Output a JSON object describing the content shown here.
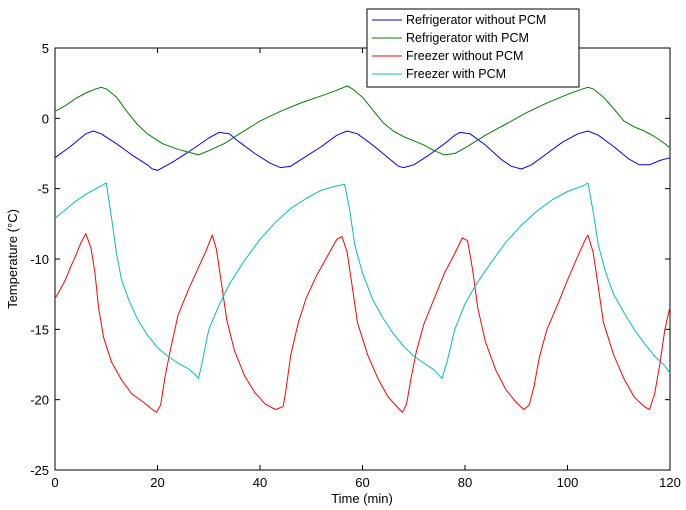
{
  "chart_data": {
    "type": "line",
    "xlabel": "Time (min)",
    "ylabel": "Temperature (°C)",
    "xlim": [
      0,
      120
    ],
    "ylim": [
      -25,
      5
    ],
    "xticks": [
      0,
      20,
      40,
      60,
      80,
      100,
      120
    ],
    "yticks": [
      -25,
      -20,
      -15,
      -10,
      -5,
      0,
      5
    ],
    "grid": false,
    "legend_position": "top-right",
    "series": [
      {
        "name": "Refrigerator without PCM",
        "color": "#0000ff",
        "points": [
          [
            0,
            -2.8
          ],
          [
            3,
            -2.0
          ],
          [
            6,
            -1.1
          ],
          [
            7.5,
            -0.9
          ],
          [
            9,
            -1.1
          ],
          [
            12,
            -1.8
          ],
          [
            15,
            -2.6
          ],
          [
            18,
            -3.3
          ],
          [
            19,
            -3.6
          ],
          [
            20,
            -3.7
          ],
          [
            23,
            -3.1
          ],
          [
            26,
            -2.4
          ],
          [
            30,
            -1.4
          ],
          [
            32,
            -1.0
          ],
          [
            34,
            -1.1
          ],
          [
            36,
            -1.7
          ],
          [
            39,
            -2.5
          ],
          [
            42,
            -3.2
          ],
          [
            44,
            -3.5
          ],
          [
            46,
            -3.4
          ],
          [
            49,
            -2.7
          ],
          [
            52,
            -2.0
          ],
          [
            55,
            -1.2
          ],
          [
            57,
            -0.9
          ],
          [
            59,
            -1.1
          ],
          [
            62,
            -1.9
          ],
          [
            65,
            -2.8
          ],
          [
            67,
            -3.4
          ],
          [
            68,
            -3.5
          ],
          [
            70,
            -3.3
          ],
          [
            73,
            -2.6
          ],
          [
            76,
            -1.8
          ],
          [
            78,
            -1.2
          ],
          [
            79,
            -1.0
          ],
          [
            81,
            -1.1
          ],
          [
            84,
            -1.9
          ],
          [
            87,
            -2.9
          ],
          [
            89,
            -3.4
          ],
          [
            91,
            -3.6
          ],
          [
            93,
            -3.3
          ],
          [
            96,
            -2.5
          ],
          [
            99,
            -1.7
          ],
          [
            102,
            -1.1
          ],
          [
            104,
            -0.9
          ],
          [
            106,
            -1.2
          ],
          [
            109,
            -2.0
          ],
          [
            112,
            -2.9
          ],
          [
            114,
            -3.3
          ],
          [
            116,
            -3.3
          ],
          [
            118,
            -3.0
          ],
          [
            120,
            -2.8
          ]
        ]
      },
      {
        "name": "Refrigerator with PCM",
        "color": "#008000",
        "points": [
          [
            0,
            0.5
          ],
          [
            2,
            0.9
          ],
          [
            4,
            1.4
          ],
          [
            6,
            1.8
          ],
          [
            8,
            2.1
          ],
          [
            9,
            2.2
          ],
          [
            10,
            2.1
          ],
          [
            12,
            1.5
          ],
          [
            14,
            0.5
          ],
          [
            16,
            -0.4
          ],
          [
            18,
            -1.1
          ],
          [
            21,
            -1.8
          ],
          [
            24,
            -2.2
          ],
          [
            26,
            -2.4
          ],
          [
            28,
            -2.6
          ],
          [
            30,
            -2.3
          ],
          [
            33,
            -1.8
          ],
          [
            36,
            -1.1
          ],
          [
            40,
            -0.2
          ],
          [
            44,
            0.5
          ],
          [
            48,
            1.1
          ],
          [
            52,
            1.6
          ],
          [
            55,
            2.0
          ],
          [
            57,
            2.3
          ],
          [
            58,
            2.1
          ],
          [
            60,
            1.5
          ],
          [
            62,
            0.6
          ],
          [
            64,
            -0.3
          ],
          [
            66,
            -0.9
          ],
          [
            68,
            -1.3
          ],
          [
            70,
            -1.6
          ],
          [
            72,
            -1.9
          ],
          [
            74,
            -2.3
          ],
          [
            76,
            -2.6
          ],
          [
            78,
            -2.5
          ],
          [
            80,
            -2.1
          ],
          [
            84,
            -1.2
          ],
          [
            88,
            -0.4
          ],
          [
            92,
            0.4
          ],
          [
            96,
            1.1
          ],
          [
            100,
            1.7
          ],
          [
            103,
            2.1
          ],
          [
            104,
            2.2
          ],
          [
            105,
            2.1
          ],
          [
            107,
            1.5
          ],
          [
            109,
            0.7
          ],
          [
            111,
            -0.2
          ],
          [
            113,
            -0.6
          ],
          [
            115,
            -0.9
          ],
          [
            117,
            -1.3
          ],
          [
            119,
            -1.8
          ],
          [
            120,
            -2.1
          ]
        ]
      },
      {
        "name": "Freezer without PCM",
        "color": "#ff0000",
        "points": [
          [
            0,
            -12.8
          ],
          [
            1,
            -12.2
          ],
          [
            2,
            -11.5
          ],
          [
            3,
            -10.6
          ],
          [
            4,
            -9.8
          ],
          [
            5,
            -8.9
          ],
          [
            6,
            -8.2
          ],
          [
            7,
            -9.2
          ],
          [
            7.8,
            -11.0
          ],
          [
            8.5,
            -13.5
          ],
          [
            9.5,
            -15.6
          ],
          [
            11,
            -17.3
          ],
          [
            13,
            -18.6
          ],
          [
            15,
            -19.6
          ],
          [
            17,
            -20.1
          ],
          [
            19,
            -20.7
          ],
          [
            19.8,
            -20.9
          ],
          [
            20.6,
            -20.4
          ],
          [
            21.5,
            -18.3
          ],
          [
            22.5,
            -16.5
          ],
          [
            24,
            -14.0
          ],
          [
            26,
            -12.2
          ],
          [
            28,
            -10.6
          ],
          [
            29.5,
            -9.4
          ],
          [
            30.7,
            -8.3
          ],
          [
            31.5,
            -9.3
          ],
          [
            32.5,
            -11.8
          ],
          [
            33.5,
            -14.3
          ],
          [
            35,
            -16.5
          ],
          [
            37,
            -18.3
          ],
          [
            39,
            -19.5
          ],
          [
            41,
            -20.3
          ],
          [
            43,
            -20.7
          ],
          [
            44.5,
            -20.5
          ],
          [
            45,
            -19.5
          ],
          [
            46,
            -16.8
          ],
          [
            47.5,
            -14.5
          ],
          [
            49,
            -12.8
          ],
          [
            51,
            -11.2
          ],
          [
            53,
            -9.9
          ],
          [
            55,
            -8.6
          ],
          [
            56,
            -8.4
          ],
          [
            57,
            -9.5
          ],
          [
            58,
            -12.0
          ],
          [
            59,
            -14.5
          ],
          [
            61,
            -16.8
          ],
          [
            63,
            -18.5
          ],
          [
            65,
            -19.8
          ],
          [
            67,
            -20.6
          ],
          [
            67.8,
            -20.9
          ],
          [
            68.6,
            -20.3
          ],
          [
            69.5,
            -18.4
          ],
          [
            70.5,
            -16.6
          ],
          [
            72,
            -14.6
          ],
          [
            74,
            -12.8
          ],
          [
            76,
            -11.0
          ],
          [
            78,
            -9.6
          ],
          [
            79.5,
            -8.5
          ],
          [
            80.5,
            -8.7
          ],
          [
            81.5,
            -10.8
          ],
          [
            82.5,
            -13.5
          ],
          [
            84,
            -15.9
          ],
          [
            86,
            -17.9
          ],
          [
            88,
            -19.3
          ],
          [
            90,
            -20.2
          ],
          [
            91.5,
            -20.7
          ],
          [
            92.5,
            -20.4
          ],
          [
            93.5,
            -19.0
          ],
          [
            94.5,
            -17.0
          ],
          [
            96,
            -15.0
          ],
          [
            98,
            -13.3
          ],
          [
            100,
            -11.5
          ],
          [
            102,
            -9.8
          ],
          [
            103.5,
            -8.6
          ],
          [
            104,
            -8.3
          ],
          [
            105,
            -9.5
          ],
          [
            106,
            -12.0
          ],
          [
            107,
            -14.5
          ],
          [
            109,
            -16.8
          ],
          [
            111,
            -18.5
          ],
          [
            113,
            -19.8
          ],
          [
            115,
            -20.5
          ],
          [
            116,
            -20.7
          ],
          [
            117,
            -19.6
          ],
          [
            118,
            -17.5
          ],
          [
            119,
            -15.0
          ],
          [
            120,
            -13.4
          ]
        ]
      },
      {
        "name": "Freezer with PCM",
        "color": "#00bfbf",
        "points": [
          [
            0,
            -7.1
          ],
          [
            2,
            -6.5
          ],
          [
            4,
            -5.9
          ],
          [
            6,
            -5.4
          ],
          [
            8,
            -5.0
          ],
          [
            9.5,
            -4.7
          ],
          [
            10,
            -4.6
          ],
          [
            11,
            -7.0
          ],
          [
            12,
            -9.6
          ],
          [
            13,
            -11.5
          ],
          [
            14.5,
            -13.0
          ],
          [
            16,
            -14.2
          ],
          [
            18,
            -15.4
          ],
          [
            20,
            -16.3
          ],
          [
            22,
            -16.9
          ],
          [
            24,
            -17.4
          ],
          [
            26,
            -17.8
          ],
          [
            27.3,
            -18.2
          ],
          [
            28,
            -18.5
          ],
          [
            28.8,
            -17.2
          ],
          [
            30,
            -15.0
          ],
          [
            32,
            -13.3
          ],
          [
            34,
            -11.8
          ],
          [
            37,
            -10.1
          ],
          [
            40,
            -8.6
          ],
          [
            43,
            -7.4
          ],
          [
            46,
            -6.4
          ],
          [
            49,
            -5.7
          ],
          [
            52,
            -5.1
          ],
          [
            55,
            -4.8
          ],
          [
            56.5,
            -4.7
          ],
          [
            57.5,
            -6.5
          ],
          [
            58.5,
            -9.0
          ],
          [
            60,
            -11.0
          ],
          [
            62,
            -12.9
          ],
          [
            64,
            -14.2
          ],
          [
            66,
            -15.3
          ],
          [
            68,
            -16.2
          ],
          [
            70,
            -16.9
          ],
          [
            72,
            -17.4
          ],
          [
            74,
            -17.9
          ],
          [
            75.5,
            -18.5
          ],
          [
            76.5,
            -17.3
          ],
          [
            78,
            -15.0
          ],
          [
            80,
            -13.2
          ],
          [
            82,
            -11.9
          ],
          [
            85,
            -10.3
          ],
          [
            88,
            -8.8
          ],
          [
            91,
            -7.6
          ],
          [
            94,
            -6.6
          ],
          [
            97,
            -5.8
          ],
          [
            100,
            -5.2
          ],
          [
            103,
            -4.8
          ],
          [
            104,
            -4.6
          ],
          [
            105,
            -6.6
          ],
          [
            106,
            -9.0
          ],
          [
            107.5,
            -11.0
          ],
          [
            109,
            -12.5
          ],
          [
            111,
            -13.8
          ],
          [
            113,
            -15.0
          ],
          [
            115,
            -16.0
          ],
          [
            117,
            -16.9
          ],
          [
            119,
            -17.6
          ],
          [
            120,
            -18.1
          ]
        ]
      }
    ]
  }
}
